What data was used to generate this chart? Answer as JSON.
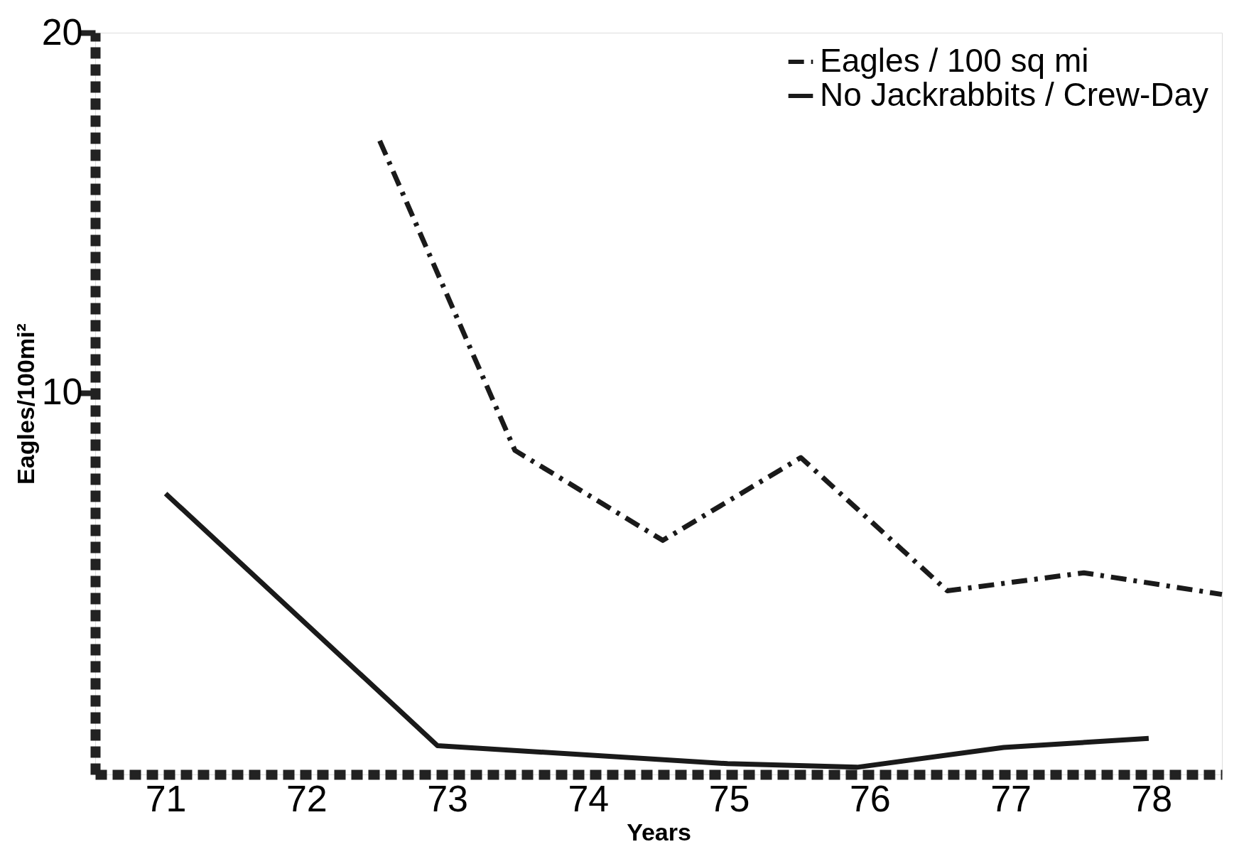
{
  "chart_data": {
    "type": "line",
    "xlabel": "Years",
    "ylabel": "Eagles/100mi²",
    "xlim": [
      70.5,
      78.5
    ],
    "xticks": [
      71,
      72,
      73,
      74,
      75,
      76,
      77,
      78
    ],
    "ylim": [
      -0.6,
      20
    ],
    "yticks": [
      10,
      20
    ],
    "legend": "top right",
    "grid": false,
    "marker": "none",
    "series": [
      {
        "name": "Eagles / 100 sq mi",
        "color": "#1a1a1a",
        "line_style": "dashed",
        "x": [
          72.52,
          73.48,
          74.53,
          75.51,
          76.55,
          77.52,
          78.5
        ],
        "values": [
          17.0,
          8.4,
          5.9,
          8.2,
          4.5,
          5.0,
          4.4
        ]
      },
      {
        "name": "No Jackrabbits / Crew-Day",
        "color": "#1a1a1a",
        "line_style": "solid",
        "x": [
          71.0,
          72.93,
          74.99,
          75.91,
          76.95,
          77.98
        ],
        "values": [
          7.2,
          0.2,
          -0.3,
          -0.4,
          0.15,
          0.4
        ]
      }
    ]
  }
}
